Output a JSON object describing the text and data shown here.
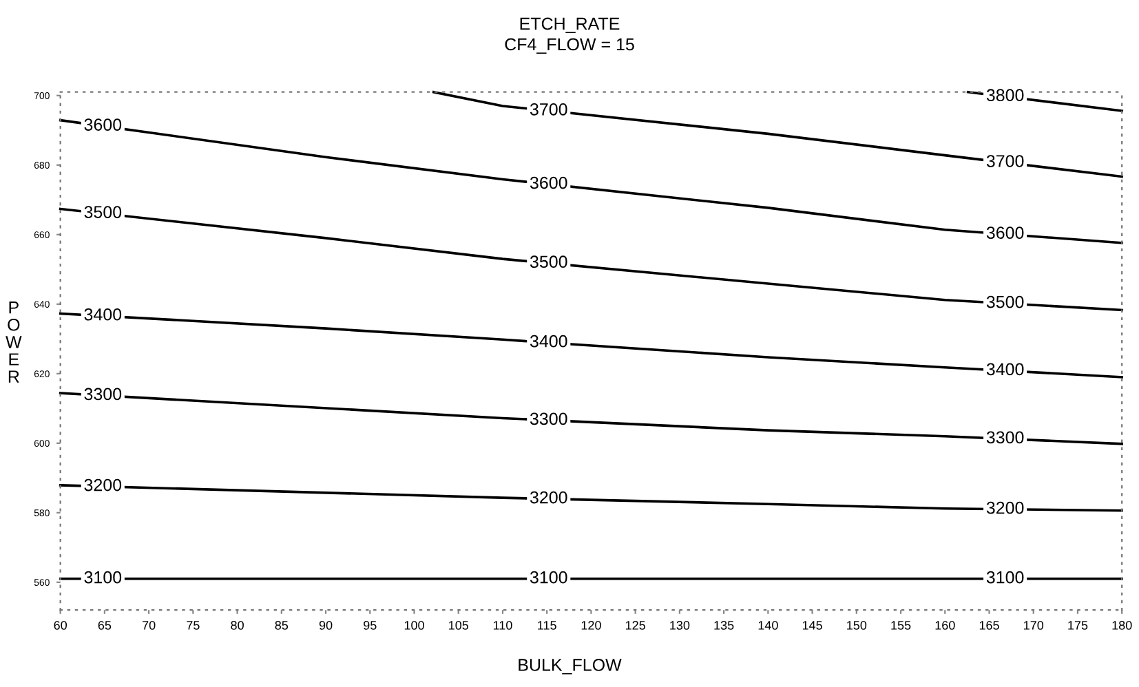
{
  "chart_data": {
    "type": "line",
    "title": "ETCH_RATE",
    "subtitle": "CF4_FLOW = 15",
    "xlabel": "BULK_FLOW",
    "ylabel": "POWER",
    "series": [
      {
        "name": "3100",
        "color": "#000000",
        "x": [
          60,
          180
        ],
        "values": [
          561,
          561
        ]
      },
      {
        "name": "3200",
        "color": "#000000",
        "x": [
          60,
          110,
          140,
          160,
          180
        ],
        "values": [
          587.9,
          584.3,
          582.5,
          581.2,
          580.6
        ]
      },
      {
        "name": "3300",
        "color": "#000000",
        "x": [
          60,
          110,
          140,
          160,
          180
        ],
        "values": [
          614.4,
          607.2,
          603.7,
          602,
          599.8
        ]
      },
      {
        "name": "3400",
        "color": "#000000",
        "x": [
          60,
          90,
          110,
          140,
          160,
          180
        ],
        "values": [
          637.3,
          633,
          629.8,
          624.7,
          621.8,
          619
        ]
      },
      {
        "name": "3500",
        "color": "#000000",
        "x": [
          60,
          90,
          110,
          140,
          160,
          180
        ],
        "values": [
          667.4,
          659,
          653,
          645.9,
          641.2,
          638.3
        ]
      },
      {
        "name": "3600",
        "color": "#000000",
        "x": [
          60,
          90,
          110,
          140,
          160,
          180
        ],
        "values": [
          692.9,
          682.3,
          675.9,
          667.7,
          661.4,
          657.6
        ]
      },
      {
        "name": "3700",
        "color": "#000000",
        "x": [
          102.2,
          110,
          140,
          160,
          180
        ],
        "values": [
          701,
          697,
          689,
          682.8,
          676.7
        ]
      },
      {
        "name": "3800",
        "color": "#000000",
        "x": [
          162.6,
          180
        ],
        "values": [
          701,
          695.6
        ]
      }
    ],
    "xlim": [
      60,
      180
    ],
    "ylim": [
      552,
      701
    ],
    "xticks": [
      60,
      65,
      70,
      75,
      80,
      85,
      90,
      95,
      100,
      105,
      110,
      115,
      120,
      125,
      130,
      135,
      140,
      145,
      150,
      155,
      160,
      165,
      170,
      175,
      180
    ],
    "yticks": [
      560,
      580,
      600,
      620,
      640,
      660,
      680,
      700
    ],
    "grid": false,
    "legend": false,
    "marker": "none",
    "line_style": "solid"
  }
}
